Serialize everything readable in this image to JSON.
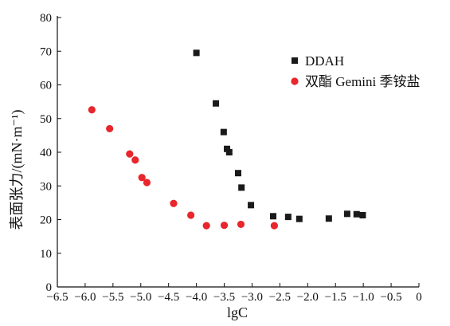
{
  "chart_data": {
    "type": "scatter",
    "xlabel": "lgC",
    "ylabel": "表面张力/(mN·m⁻¹)",
    "xlim": [
      -6.5,
      0
    ],
    "ylim": [
      0,
      80
    ],
    "xticks": [
      -6.5,
      -6.0,
      -5.5,
      -5.0,
      -4.5,
      -4.0,
      -3.5,
      -3.0,
      -2.5,
      -2.0,
      -1.5,
      -1.0,
      -0.5,
      0
    ],
    "xtick_labels": [
      "−6.5",
      "−6.0",
      "−5.5",
      "−5.0",
      "−4.5",
      "−4.0",
      "−3.5",
      "−3.0",
      "−2.5",
      "−2.0",
      "−1.5",
      "−1.0",
      "−0.5",
      "0"
    ],
    "yticks": [
      0,
      10,
      20,
      30,
      40,
      50,
      60,
      70,
      80
    ],
    "ytick_labels": [
      "0",
      "10",
      "20",
      "30",
      "40",
      "50",
      "60",
      "70",
      "80"
    ],
    "grid": false,
    "legend": "top-right",
    "series": [
      {
        "name": "DDAH",
        "marker": "square",
        "color": "#1a1a1a",
        "x": [
          -4.0,
          -3.65,
          -3.51,
          -3.45,
          -3.41,
          -3.25,
          -3.19,
          -3.02,
          -2.62,
          -2.35,
          -2.15,
          -1.62,
          -1.29,
          -1.12,
          -1.01
        ],
        "y": [
          69.5,
          54.5,
          46.0,
          41.0,
          40.0,
          33.8,
          29.5,
          24.3,
          21.0,
          20.8,
          20.2,
          20.3,
          21.7,
          21.6,
          21.3
        ]
      },
      {
        "name": "双酯 Gemini 季铵盐",
        "marker": "circle",
        "color": "#e8262b",
        "x": [
          -5.88,
          -5.56,
          -5.2,
          -5.1,
          -4.98,
          -4.89,
          -4.41,
          -4.1,
          -3.82,
          -3.5,
          -3.2,
          -2.6
        ],
        "y": [
          52.6,
          47.0,
          39.5,
          37.7,
          32.5,
          31.0,
          24.8,
          21.3,
          18.2,
          18.3,
          18.6,
          18.2
        ]
      }
    ]
  }
}
